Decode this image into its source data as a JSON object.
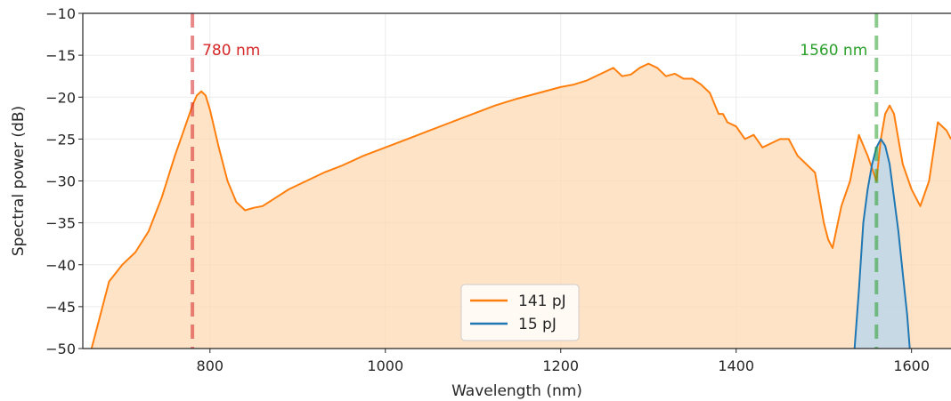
{
  "chart_data": {
    "type": "area",
    "xlabel": "Wavelength (nm)",
    "ylabel": "Spectral power (dB)",
    "xlim": [
      655,
      1645
    ],
    "ylim": [
      -50,
      -10
    ],
    "xticks": [
      800,
      1000,
      1200,
      1400,
      1600
    ],
    "yticks": [
      -10,
      -15,
      -20,
      -25,
      -30,
      -35,
      -40,
      -45,
      -50
    ],
    "grid": true,
    "legend_position": "lower-center",
    "series": [
      {
        "name": "141 pJ",
        "color": "#ff7f0e",
        "fill": "#ffd9b3",
        "x": [
          665,
          675,
          685,
          700,
          715,
          730,
          745,
          760,
          770,
          780,
          785,
          790,
          795,
          800,
          810,
          820,
          830,
          840,
          850,
          860,
          875,
          890,
          910,
          930,
          950,
          975,
          1000,
          1025,
          1050,
          1075,
          1100,
          1125,
          1150,
          1175,
          1200,
          1215,
          1230,
          1250,
          1260,
          1270,
          1280,
          1290,
          1300,
          1310,
          1320,
          1330,
          1340,
          1350,
          1360,
          1370,
          1380,
          1385,
          1390,
          1400,
          1410,
          1420,
          1430,
          1440,
          1450,
          1460,
          1470,
          1480,
          1490,
          1500,
          1505,
          1510,
          1520,
          1530,
          1540,
          1550,
          1560,
          1565,
          1570,
          1575,
          1580,
          1585,
          1590,
          1600,
          1610,
          1620,
          1630,
          1640,
          1645
        ],
        "values": [
          -50,
          -46,
          -42,
          -40,
          -38.5,
          -36,
          -32,
          -27,
          -24,
          -21,
          -19.8,
          -19.3,
          -19.8,
          -21.5,
          -26,
          -30,
          -32.5,
          -33.5,
          -33.2,
          -33,
          -32,
          -31,
          -30,
          -29,
          -28.2,
          -27,
          -26,
          -25,
          -24,
          -23,
          -22,
          -21,
          -20.2,
          -19.5,
          -18.8,
          -18.5,
          -18,
          -17,
          -16.5,
          -17.5,
          -17.3,
          -16.5,
          -16,
          -16.5,
          -17.5,
          -17.2,
          -17.8,
          -17.8,
          -18.5,
          -19.5,
          -22,
          -22,
          -23,
          -23.5,
          -25,
          -24.5,
          -26,
          -25.5,
          -25,
          -25,
          -27,
          -28,
          -29,
          -35,
          -37,
          -38,
          -33,
          -30,
          -24.5,
          -27,
          -30,
          -25,
          -22,
          -21,
          -22,
          -25,
          -28,
          -31,
          -33,
          -30,
          -23,
          -24,
          -25
        ]
      },
      {
        "name": "15 pJ",
        "color": "#1f77b4",
        "fill": "#bcd7ea",
        "x": [
          1535,
          1540,
          1545,
          1550,
          1555,
          1560,
          1565,
          1570,
          1575,
          1580,
          1585,
          1590,
          1595,
          1598
        ],
        "values": [
          -50,
          -43,
          -35,
          -31,
          -28,
          -26,
          -25,
          -25.8,
          -28,
          -32,
          -36,
          -41,
          -46,
          -50
        ]
      }
    ],
    "vlines": [
      {
        "x": 780,
        "label": "780 nm",
        "color": "#d62728"
      },
      {
        "x": 1560,
        "label": "1560 nm",
        "color": "#2ca02c"
      }
    ]
  }
}
